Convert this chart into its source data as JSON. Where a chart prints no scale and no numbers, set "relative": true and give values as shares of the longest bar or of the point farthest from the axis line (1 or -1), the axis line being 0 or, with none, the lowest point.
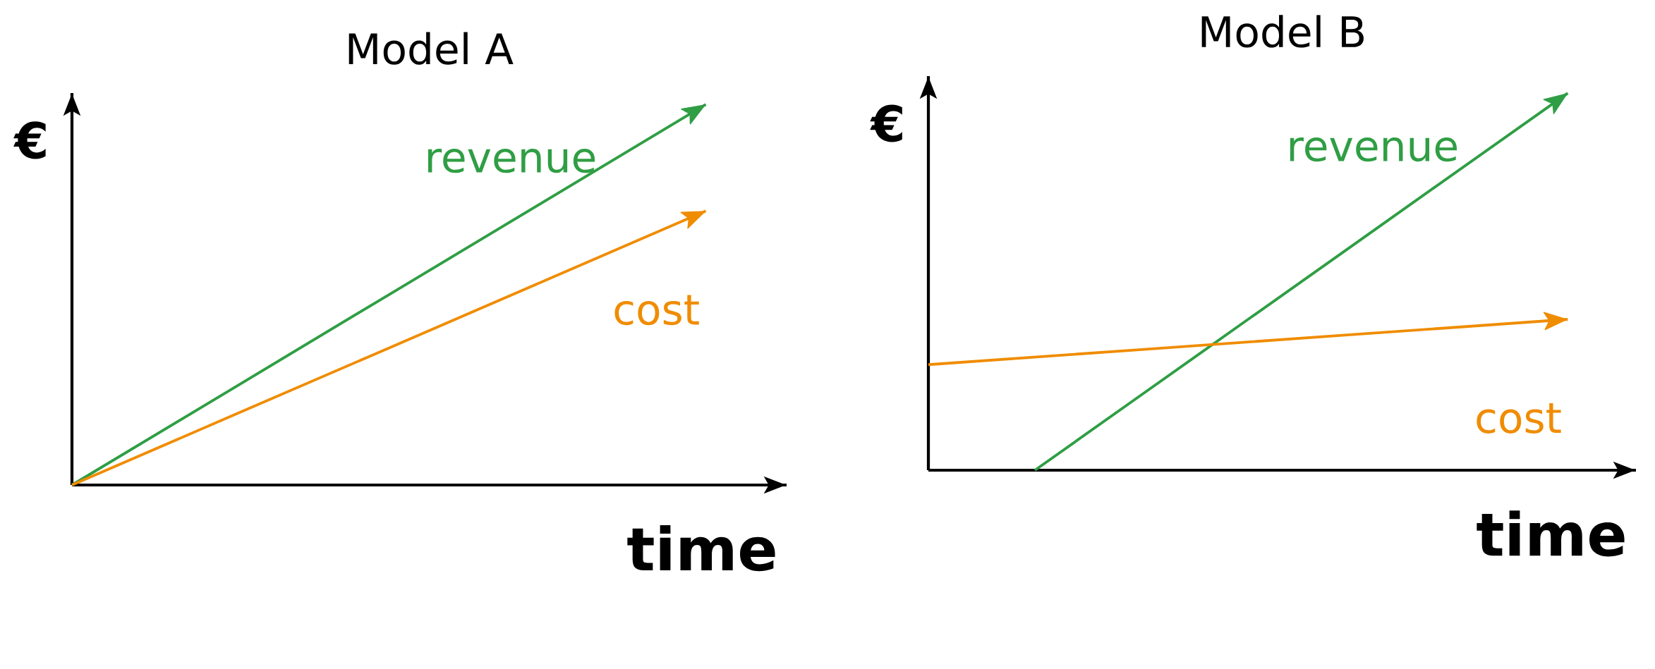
{
  "chart_data": [
    {
      "type": "line",
      "title": "Model A",
      "xlabel": "time",
      "ylabel": "€",
      "relative": true,
      "categories": [
        null,
        null,
        null,
        null,
        null
      ],
      "series": [
        {
          "name": "revenue",
          "color": "#2f9e44",
          "values": [
            0,
            0.25,
            0.5,
            0.75,
            1
          ]
        },
        {
          "name": "cost",
          "color": "#f08c00",
          "values": [
            0,
            0.18,
            0.36,
            0.54,
            0.72
          ]
        }
      ]
    },
    {
      "type": "line",
      "title": "Model B",
      "xlabel": "time",
      "ylabel": "€",
      "relative": true,
      "categories": [
        null,
        null,
        null,
        null,
        null,
        null,
        null
      ],
      "series": [
        {
          "name": "revenue",
          "color": "#2f9e44",
          "values": [
            null,
            0,
            0.2,
            0.4,
            0.6,
            0.8,
            1
          ]
        },
        {
          "name": "cost",
          "color": "#f08c00",
          "values": [
            0.28,
            0.3,
            0.32,
            0.34,
            0.36,
            0.38,
            0.4
          ]
        }
      ]
    }
  ]
}
